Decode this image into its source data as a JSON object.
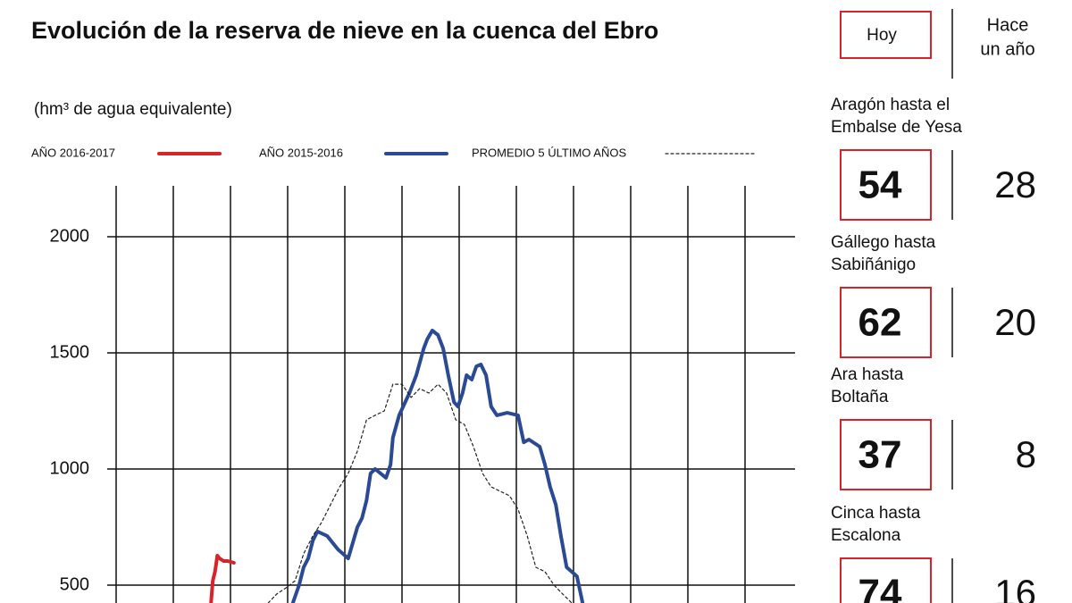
{
  "chart_data": {
    "type": "line",
    "title": "Evolución de la reserva de nieve en la cuenca del Ebro",
    "subtitle": "(hm³ de agua equivalente)",
    "xlim": [
      0,
      12
    ],
    "xticks": [
      0,
      1,
      2,
      3,
      4,
      5,
      6,
      7,
      8,
      9,
      10,
      11,
      12
    ],
    "ylim": [
      0,
      2200
    ],
    "yticks": [
      500,
      1000,
      1500,
      2000
    ],
    "grid": true,
    "legend": "top",
    "series": [
      {
        "name": "AÑO 2016-2017",
        "color": "#d8232a",
        "style": "solid",
        "x": [
          1.66,
          1.69,
          1.73,
          1.77,
          1.81,
          1.88,
          1.95,
          2.06
        ],
        "values": [
          423,
          519,
          558,
          627,
          615,
          604,
          604,
          596
        ]
      },
      {
        "name": "AÑO 2015-2016",
        "color": "#2a4a96",
        "style": "solid",
        "x": [
          3.09,
          3.2,
          3.28,
          3.36,
          3.44,
          3.52,
          3.69,
          3.88,
          4.06,
          4.22,
          4.3,
          4.38,
          4.45,
          4.53,
          4.72,
          4.8,
          4.84,
          4.95,
          5.13,
          5.25,
          5.38,
          5.44,
          5.53,
          5.63,
          5.72,
          5.81,
          5.91,
          5.98,
          6.06,
          6.13,
          6.22,
          6.3,
          6.38,
          6.47,
          6.56,
          6.66,
          6.84,
          7.03,
          7.13,
          7.22,
          7.41,
          7.5,
          7.59,
          7.69,
          7.78,
          7.88,
          8.06,
          8.16
        ],
        "values": [
          423,
          500,
          577,
          615,
          692,
          731,
          712,
          654,
          615,
          750,
          788,
          865,
          981,
          1000,
          962,
          1019,
          1135,
          1231,
          1327,
          1404,
          1519,
          1558,
          1596,
          1577,
          1519,
          1404,
          1288,
          1269,
          1327,
          1404,
          1385,
          1442,
          1450,
          1404,
          1269,
          1231,
          1242,
          1231,
          1115,
          1127,
          1096,
          1019,
          923,
          846,
          712,
          577,
          538,
          423
        ]
      },
      {
        "name": "PROMEDIO 5 ÚLTIMO AÑOS",
        "color": "#222222",
        "style": "dashed",
        "x": [
          2.66,
          2.81,
          2.97,
          3.13,
          3.28,
          3.44,
          3.59,
          3.75,
          3.91,
          4.06,
          4.22,
          4.38,
          4.53,
          4.69,
          4.84,
          5.0,
          5.16,
          5.31,
          5.47,
          5.63,
          5.78,
          5.94,
          6.09,
          6.25,
          6.41,
          6.56,
          6.72,
          6.88,
          7.03,
          7.19,
          7.34,
          7.5,
          7.66,
          7.81,
          7.97
        ],
        "values": [
          423,
          462,
          488,
          519,
          635,
          712,
          769,
          846,
          923,
          981,
          1077,
          1212,
          1231,
          1250,
          1365,
          1365,
          1308,
          1346,
          1327,
          1365,
          1327,
          1212,
          1192,
          1096,
          981,
          923,
          904,
          885,
          827,
          712,
          577,
          558,
          500,
          462,
          423
        ]
      }
    ]
  },
  "panel": {
    "header_today": "Hoy",
    "header_year_ago": [
      "Hace",
      "un año"
    ],
    "rows": [
      {
        "label": [
          "Aragón hasta el",
          "Embalse de Yesa"
        ],
        "today": "54",
        "year_ago": "28"
      },
      {
        "label": [
          "Gállego hasta",
          "Sabiñánigo"
        ],
        "today": "62",
        "year_ago": "20"
      },
      {
        "label": [
          "Ara hasta",
          "Boltaña"
        ],
        "today": "37",
        "year_ago": "8"
      },
      {
        "label": [
          "Cinca hasta",
          "Escalona"
        ],
        "today": "74",
        "year_ago": "16"
      }
    ]
  }
}
